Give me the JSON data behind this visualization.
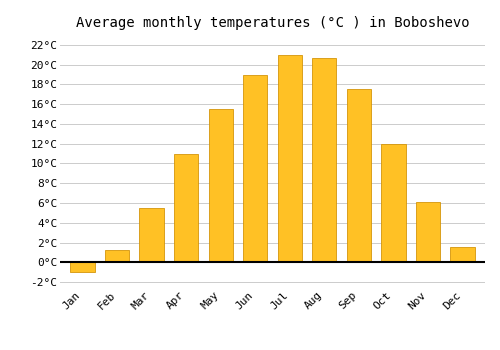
{
  "title": "Average monthly temperatures (°C ) in Boboshevo",
  "months": [
    "Jan",
    "Feb",
    "Mar",
    "Apr",
    "May",
    "Jun",
    "Jul",
    "Aug",
    "Sep",
    "Oct",
    "Nov",
    "Dec"
  ],
  "values": [
    -1.0,
    1.2,
    5.5,
    11.0,
    15.5,
    19.0,
    21.0,
    20.7,
    17.5,
    12.0,
    6.1,
    1.5
  ],
  "bar_color": "#FFC125",
  "bar_edge_color": "#D4960A",
  "ylim": [
    -2.5,
    23
  ],
  "yticks": [
    -2,
    0,
    2,
    4,
    6,
    8,
    10,
    12,
    14,
    16,
    18,
    20,
    22
  ],
  "ytick_labels": [
    "-2°C",
    "0°C",
    "2°C",
    "4°C",
    "6°C",
    "8°C",
    "10°C",
    "12°C",
    "14°C",
    "16°C",
    "18°C",
    "20°C",
    "22°C"
  ],
  "background_color": "#ffffff",
  "grid_color": "#cccccc",
  "title_fontsize": 10,
  "tick_fontsize": 8,
  "bar_width": 0.7
}
